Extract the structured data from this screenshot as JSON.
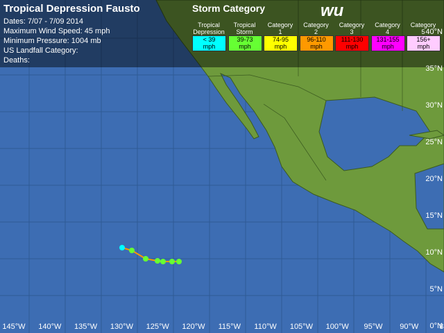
{
  "header": {
    "title": "Tropical Depression Fausto",
    "details": [
      "Dates: 7/07 - 7/09 2014",
      "Maximum Wind Speed: 45 mph",
      "Minimum Pressure: 1004 mb",
      "US Landfall Category:",
      "Deaths:"
    ]
  },
  "legend": {
    "title": "Storm Category",
    "items": [
      {
        "name": "Tropical Depression",
        "range": "< 39",
        "unit": "mph",
        "color": "#00ffff"
      },
      {
        "name": "Tropical Storm",
        "range": "39-73",
        "unit": "mph",
        "color": "#66ff33"
      },
      {
        "name": "Category 1",
        "range": "74-95",
        "unit": "mph",
        "color": "#ffff00"
      },
      {
        "name": "Category 2",
        "range": "96-110",
        "unit": "mph",
        "color": "#ff9900"
      },
      {
        "name": "Category 3",
        "range": "111-130",
        "unit": "mph",
        "color": "#ff0000"
      },
      {
        "name": "Category 4",
        "range": "131-155",
        "unit": "mph",
        "color": "#ff00ff"
      },
      {
        "name": "Category 5",
        "range": "156+",
        "unit": "mph",
        "color": "#ffccff"
      }
    ]
  },
  "logo": "wu",
  "map": {
    "longitude_labels": [
      "145°W",
      "140°W",
      "135°W",
      "130°W",
      "125°W",
      "120°W",
      "115°W",
      "110°W",
      "105°W",
      "100°W",
      "95°W",
      "90°W",
      "85°"
    ],
    "latitude_labels": [
      "40°N",
      "35°N",
      "30°N",
      "25°N",
      "20°N",
      "15°N",
      "10°N",
      "5°N",
      "0°N"
    ]
  }
}
